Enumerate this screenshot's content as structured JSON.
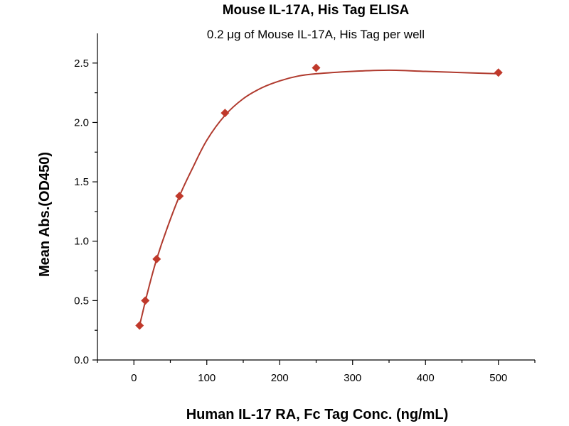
{
  "chart_data": {
    "type": "scatter",
    "title": "Mouse IL-17A, His Tag ELISA",
    "subtitle": "0.2 μg of Mouse IL-17A, His Tag per well",
    "xlabel": "Human IL-17 RA, Fc Tag Conc. (ng/mL)",
    "ylabel": "Mean Abs.(OD450)",
    "xlim": [
      -50,
      550
    ],
    "ylim": [
      0,
      2.75
    ],
    "x_ticks": [
      0,
      100,
      200,
      300,
      400,
      500
    ],
    "y_ticks": [
      0.0,
      0.5,
      1.0,
      1.5,
      2.0,
      2.5
    ],
    "x_tick_labels": [
      "0",
      "100",
      "200",
      "300",
      "400",
      "500"
    ],
    "y_tick_labels": [
      "0.0",
      "0.5",
      "1.0",
      "1.5",
      "2.0",
      "2.5"
    ],
    "grid": false,
    "marker": "diamond",
    "color": "#c0392b",
    "curve_color": "#b03a2e",
    "series": [
      {
        "x": [
          7.8,
          15.6,
          31.25,
          62.5,
          125,
          250,
          500
        ],
        "y": [
          0.29,
          0.5,
          0.85,
          1.38,
          2.08,
          2.46,
          2.42
        ]
      }
    ],
    "fit_curve": {
      "x": [
        7.8,
        12,
        20,
        31.25,
        45,
        62.5,
        80,
        100,
        125,
        150,
        175,
        200,
        225,
        250,
        300,
        350,
        400,
        450,
        500
      ],
      "y": [
        0.29,
        0.4,
        0.6,
        0.85,
        1.1,
        1.38,
        1.61,
        1.85,
        2.06,
        2.2,
        2.29,
        2.35,
        2.39,
        2.41,
        2.43,
        2.44,
        2.43,
        2.42,
        2.41
      ]
    }
  }
}
